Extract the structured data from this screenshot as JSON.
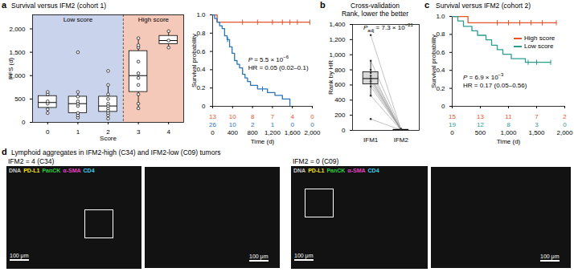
{
  "chart_data": [
    {
      "panel": "a",
      "type": "box",
      "title": "Survival versus IFM2 (cohort 1)",
      "x_label": "Score",
      "y_label": "PFS (d)",
      "categories": [
        0,
        1,
        2,
        3,
        4
      ],
      "points": [
        [
          200,
          280,
          400,
          450,
          600,
          650
        ],
        [
          100,
          150,
          200,
          350,
          400,
          450,
          550,
          650,
          1500
        ],
        [
          80,
          150,
          200,
          250,
          300,
          350,
          400,
          500,
          600,
          800,
          1100
        ],
        [
          300,
          400,
          600,
          800,
          950,
          1050,
          1300,
          1600,
          1650,
          1800
        ],
        [
          1600,
          1750,
          1950
        ]
      ],
      "groups": [
        {
          "name": "Low score",
          "scores": [
            0,
            1,
            2
          ],
          "color": "#c9d3ec"
        },
        {
          "name": "High score",
          "scores": [
            3,
            4
          ],
          "color": "#f5c9b9"
        }
      ],
      "xlim": [
        -0.5,
        4.5
      ],
      "xticks": [
        0,
        1,
        2,
        3,
        4
      ],
      "ylim": [
        0,
        2300
      ],
      "yticks": [
        0,
        500,
        {
          "value": 1000,
          "label": "1,000"
        },
        {
          "value": 1500,
          "label": "1,500"
        },
        {
          "value": 2000,
          "label": "2,000"
        }
      ]
    },
    {
      "panel": "a",
      "type": "line",
      "x_label": "Time (d)",
      "y_label": "Survival probability",
      "xlim": [
        0,
        2000
      ],
      "xticks": [
        0,
        400,
        800,
        {
          "value": 1200,
          "label": "1,200"
        },
        {
          "value": 1600,
          "label": "1,600"
        },
        {
          "value": 2000,
          "label": "2,000"
        }
      ],
      "ylim": [
        0,
        1
      ],
      "yticks": [
        0,
        0.2,
        0.4,
        0.6,
        0.8,
        {
          "value": 1,
          "label": "1.0"
        }
      ],
      "risk_times": [
        0,
        400,
        800,
        1200,
        1600,
        2000
      ],
      "series": [
        {
          "color": "#e8532b",
          "x": [
            0,
            90,
            1950
          ],
          "values": [
            1,
            0.92,
            0.92
          ],
          "censored": [
            600,
            900,
            1200,
            1400,
            1550,
            1700,
            1950
          ],
          "at_risk": [
            13,
            10,
            8,
            7,
            4,
            0
          ]
        },
        {
          "color": "#2b74b8",
          "x": [
            0,
            40,
            90,
            140,
            190,
            240,
            290,
            340,
            390,
            440,
            490,
            540,
            600,
            650,
            700,
            760,
            900,
            1100,
            1250,
            1400,
            1550
          ],
          "values": [
            1,
            0.96,
            0.92,
            0.88,
            0.85,
            0.77,
            0.73,
            0.65,
            0.58,
            0.5,
            0.46,
            0.42,
            0.35,
            0.31,
            0.27,
            0.23,
            0.19,
            0.15,
            0.12,
            0.08,
            0
          ],
          "censored": [
            300,
            1000
          ],
          "at_risk": [
            26,
            10,
            2,
            1,
            0,
            0
          ]
        }
      ],
      "annotation": [
        [
          {
            "text": "P",
            "style": "italic"
          },
          {
            "text": " = 5.5 × 10"
          },
          {
            "text": "−6",
            "style": "sup"
          }
        ],
        [
          {
            "text": "HR = 0.05 (0.02–0.1)"
          }
        ]
      ]
    },
    {
      "panel": "b",
      "type": "box",
      "title": "Cross-validation",
      "subtitle": "Rank, lower the better",
      "y_label": "Rank by HR",
      "categories": [
        "IFM1",
        "IFM2"
      ],
      "values": [
        [
          150,
          460,
          580,
          620,
          650,
          680,
          690,
          720,
          760,
          800,
          920,
          1260
        ],
        [
          5,
          3,
          8,
          2,
          10,
          4,
          6,
          1,
          12,
          3,
          20,
          7
        ]
      ],
      "colors": [
        "#d9d9d9",
        "#d9d9d9"
      ],
      "ylim": [
        0,
        1400
      ],
      "yticks": [
        0,
        200,
        400,
        600,
        800,
        {
          "value": 1000,
          "label": "1,000"
        },
        {
          "value": 1200,
          "label": "1,200"
        },
        {
          "value": 1400,
          "label": "1,400"
        }
      ],
      "annotation": [
        [
          {
            "text": "P",
            "style": "italic"
          },
          {
            "text": "adj",
            "style": "sub"
          },
          {
            "text": " = 7.3 × 10"
          },
          {
            "text": "−21",
            "style": "sup"
          }
        ]
      ]
    },
    {
      "panel": "c",
      "type": "line",
      "title": "Survival versus IFM2 (cohort 2)",
      "x_label": "Time (d)",
      "y_label": "Survival probability",
      "xlim": [
        0,
        2000
      ],
      "xticks": [
        0,
        500,
        {
          "value": 1000,
          "label": "1,000"
        },
        {
          "value": 1500,
          "label": "1,500"
        },
        {
          "value": 2000,
          "label": "2,000"
        }
      ],
      "ylim": [
        0,
        1
      ],
      "yticks": [
        0,
        0.2,
        0.4,
        0.6,
        0.8,
        {
          "value": 1,
          "label": "1.0"
        }
      ],
      "legend": "right",
      "risk_times": [
        0,
        500,
        1000,
        1500,
        2000
      ],
      "series": [
        {
          "name": "High score",
          "color": "#e8532b",
          "x": [
            0,
            280,
            1850
          ],
          "values": [
            1,
            0.93,
            0.93
          ],
          "censored": [
            800,
            1000,
            1200,
            1400,
            1600,
            1850
          ],
          "at_risk": [
            15,
            13,
            11,
            7,
            2
          ]
        },
        {
          "name": "Low score",
          "color": "#2a9d8f",
          "x": [
            0,
            100,
            200,
            350,
            450,
            600,
            700,
            800,
            900,
            1050,
            1300,
            1750
          ],
          "values": [
            1,
            0.95,
            0.89,
            0.84,
            0.79,
            0.74,
            0.68,
            0.63,
            0.58,
            0.53,
            0.49,
            0.49
          ],
          "censored": [
            1350,
            1500,
            1750
          ],
          "at_risk": [
            19,
            12,
            8,
            3,
            0
          ]
        }
      ],
      "annotation": [
        [
          {
            "text": "P",
            "style": "italic"
          },
          {
            "text": " = 6.9 × 10"
          },
          {
            "text": "−3",
            "style": "sup"
          }
        ],
        [
          {
            "text": "HR = 0.17 (0.05–0.56)"
          }
        ]
      ]
    }
  ],
  "panel_d": {
    "panel": "d",
    "title": "Lymphoid aggregates in IFM2-high (C34) and IFM2-low (C09) tumors",
    "channels": [
      {
        "name": "DNA",
        "color": "#cccccc"
      },
      {
        "name": "PD-L1",
        "color": "#f2e21b"
      },
      {
        "name": "PanCK",
        "color": "#2ecc40"
      },
      {
        "name": "α-SMA",
        "color": "#e040c0"
      },
      {
        "name": "CD4",
        "color": "#3fd0f0"
      }
    ],
    "images": [
      {
        "label": "IFM2 = 4 (C34)",
        "scale_bars": [
          "100 μm",
          "100 μm"
        ]
      },
      {
        "label": "IFM2 = 0 (C09)",
        "scale_bars": [
          "100 μm",
          "100 μm"
        ]
      }
    ]
  }
}
